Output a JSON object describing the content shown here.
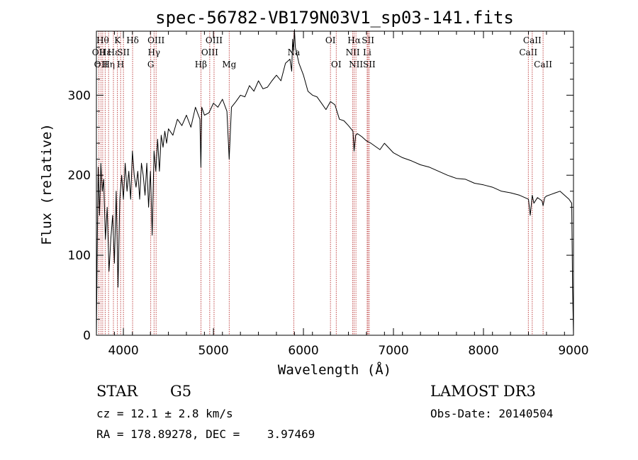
{
  "chart_data": {
    "type": "line",
    "title": "spec-56782-VB179N03V1_sp03-141.fits",
    "xlabel": "Wavelength (Å)",
    "ylabel": "Flux (relative)",
    "xlim": [
      3700,
      9000
    ],
    "ylim": [
      0,
      380
    ],
    "x_ticks": [
      4000,
      5000,
      6000,
      7000,
      8000,
      9000
    ],
    "y_ticks": [
      0,
      100,
      200,
      300
    ],
    "line_color": "#000000",
    "marker_color": "#b01818",
    "series": [
      {
        "name": "flux",
        "x": [
          3700,
          3710,
          3720,
          3735,
          3750,
          3765,
          3780,
          3800,
          3820,
          3840,
          3860,
          3880,
          3900,
          3920,
          3940,
          3960,
          3980,
          4000,
          4020,
          4040,
          4060,
          4080,
          4100,
          4120,
          4140,
          4160,
          4180,
          4200,
          4220,
          4240,
          4260,
          4280,
          4300,
          4320,
          4340,
          4360,
          4380,
          4400,
          4420,
          4440,
          4460,
          4480,
          4500,
          4550,
          4600,
          4650,
          4700,
          4750,
          4800,
          4850,
          4861,
          4870,
          4900,
          4950,
          5000,
          5050,
          5100,
          5150,
          5175,
          5200,
          5250,
          5300,
          5350,
          5400,
          5450,
          5500,
          5550,
          5600,
          5650,
          5700,
          5750,
          5800,
          5850,
          5870,
          5880,
          5890,
          5900,
          5910,
          5930,
          5950,
          6000,
          6050,
          6100,
          6150,
          6200,
          6250,
          6300,
          6350,
          6400,
          6450,
          6500,
          6550,
          6563,
          6580,
          6600,
          6650,
          6700,
          6750,
          6800,
          6850,
          6900,
          7000,
          7100,
          7200,
          7300,
          7400,
          7500,
          7600,
          7700,
          7800,
          7900,
          8000,
          8100,
          8200,
          8300,
          8400,
          8500,
          8520,
          8542,
          8560,
          8600,
          8650,
          8662,
          8680,
          8700,
          8750,
          8800,
          8850,
          8900,
          8950,
          8980,
          8990,
          9000
        ],
        "y": [
          0,
          120,
          210,
          150,
          215,
          180,
          195,
          120,
          160,
          80,
          120,
          150,
          90,
          180,
          60,
          170,
          200,
          170,
          215,
          180,
          205,
          170,
          230,
          200,
          185,
          205,
          170,
          215,
          200,
          175,
          215,
          160,
          205,
          125,
          230,
          205,
          245,
          205,
          250,
          235,
          255,
          240,
          258,
          250,
          270,
          262,
          275,
          260,
          285,
          270,
          210,
          285,
          275,
          278,
          290,
          285,
          295,
          280,
          220,
          285,
          292,
          300,
          298,
          312,
          305,
          318,
          308,
          310,
          318,
          325,
          318,
          340,
          345,
          330,
          370,
          355,
          382,
          360,
          350,
          340,
          325,
          305,
          300,
          298,
          290,
          282,
          292,
          288,
          270,
          268,
          262,
          255,
          230,
          250,
          252,
          248,
          243,
          240,
          236,
          232,
          240,
          228,
          222,
          218,
          213,
          210,
          205,
          200,
          196,
          195,
          190,
          188,
          185,
          180,
          178,
          175,
          170,
          150,
          175,
          165,
          172,
          168,
          162,
          172,
          174,
          176,
          178,
          180,
          175,
          170,
          165,
          60,
          0
        ]
      }
    ],
    "line_markers": [
      {
        "wl": 3727,
        "label": "OII",
        "row": 2
      },
      {
        "wl": 3750,
        "label": "OII",
        "row": 3
      },
      {
        "wl": 3770,
        "label": "Hθ",
        "row": 1
      },
      {
        "wl": 3797,
        "label": "Hε",
        "row": 2
      },
      {
        "wl": 3835,
        "label": "Hη",
        "row": 3
      },
      {
        "wl": 3889,
        "label": "Hε",
        "row": 2
      },
      {
        "wl": 3934,
        "label": "K",
        "row": 1
      },
      {
        "wl": 3969,
        "label": "H",
        "row": 3
      },
      {
        "wl": 4000,
        "label": "SII",
        "row": 2
      },
      {
        "wl": 4102,
        "label": "Hδ",
        "row": 1
      },
      {
        "wl": 4304,
        "label": "G",
        "row": 3
      },
      {
        "wl": 4340,
        "label": "Hγ",
        "row": 2
      },
      {
        "wl": 4363,
        "label": "OIII",
        "row": 1
      },
      {
        "wl": 4861,
        "label": "Hβ",
        "row": 3
      },
      {
        "wl": 4959,
        "label": "OIII",
        "row": 2
      },
      {
        "wl": 5007,
        "label": "OIII",
        "row": 1
      },
      {
        "wl": 5175,
        "label": "Mg",
        "row": 3
      },
      {
        "wl": 5893,
        "label": "Na",
        "row": 2
      },
      {
        "wl": 6300,
        "label": "OI",
        "row": 1
      },
      {
        "wl": 6364,
        "label": "OI",
        "row": 3
      },
      {
        "wl": 6548,
        "label": "NII",
        "row": 2
      },
      {
        "wl": 6563,
        "label": "Hα",
        "row": 1
      },
      {
        "wl": 6583,
        "label": "NII",
        "row": 3
      },
      {
        "wl": 6708,
        "label": "Li",
        "row": 2
      },
      {
        "wl": 6717,
        "label": "SII",
        "row": 1
      },
      {
        "wl": 6731,
        "label": "SII",
        "row": 3
      },
      {
        "wl": 8498,
        "label": "CaII",
        "row": 2
      },
      {
        "wl": 8542,
        "label": "CaII",
        "row": 1
      },
      {
        "wl": 8662,
        "label": "CaII",
        "row": 3
      }
    ]
  },
  "info": {
    "class_label": "STAR",
    "subclass": "G5",
    "survey": "LAMOST DR3",
    "redshift": "cz = 12.1 ± 2.8 km/s",
    "obs_date": "Obs-Date: 20140504",
    "coords": "RA = 178.89278, DEC =    3.97469"
  }
}
